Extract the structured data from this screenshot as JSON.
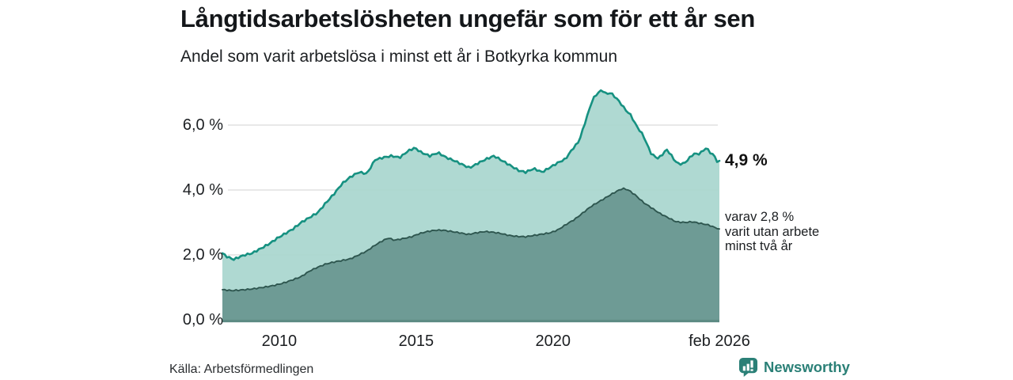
{
  "header": {
    "title": "Långtidsarbetslösheten ungefär som för ett år sen",
    "subtitle": "Andel som varit arbetslösa i minst ett år i Botkyrka kommun"
  },
  "annotations": {
    "latest_total": "4,9 %",
    "sub_lines": [
      "varav 2,8 %",
      "varit utan arbete",
      "minst två år"
    ]
  },
  "footer": {
    "source": "Källa: Arbetsförmedlingen",
    "brand": "Newsworthy"
  },
  "colors": {
    "title_text": "#14171a",
    "light_area_fill": "#a8d6ce",
    "light_area_line": "#169181",
    "dark_area_fill": "#6e9b95",
    "dark_area_line": "#2e564f",
    "gridline": "#d9d9d9",
    "baseline_axis": "#5d8b84",
    "brand_teal": "#2b8077"
  },
  "chart_data": {
    "type": "area",
    "title": "Långtidsarbetslösheten ungefär som för ett år sen",
    "subtitle": "Andel som varit arbetslösa i minst ett år i Botkyrka kommun",
    "unit": "%",
    "grid": true,
    "legend_position": "right-annotations",
    "x_domain": [
      2007.92,
      2026.08
    ],
    "ylim": [
      0,
      7.5
    ],
    "y_ticks": [
      {
        "value": 0,
        "label": "0,0 %"
      },
      {
        "value": 2,
        "label": "2,0 %"
      },
      {
        "value": 4,
        "label": "4,0 %"
      },
      {
        "value": 6,
        "label": "6,0 %"
      }
    ],
    "x_ticks": [
      {
        "value": 2010,
        "label": "2010"
      },
      {
        "value": 2015,
        "label": "2015"
      },
      {
        "value": 2020,
        "label": "2020"
      },
      {
        "value": 2026.08,
        "label": "feb 2026"
      }
    ],
    "series": [
      {
        "name": "Andel arbetslösa minst ett år",
        "latest_value": 4.9,
        "latest_label": "4,9 %",
        "points": [
          [
            2007.92,
            2.05
          ],
          [
            2008.08,
            1.95
          ],
          [
            2008.33,
            1.86
          ],
          [
            2008.58,
            1.95
          ],
          [
            2008.75,
            2.0
          ],
          [
            2009.0,
            2.05
          ],
          [
            2009.33,
            2.2
          ],
          [
            2009.65,
            2.35
          ],
          [
            2009.9,
            2.5
          ],
          [
            2010.2,
            2.65
          ],
          [
            2010.5,
            2.8
          ],
          [
            2010.8,
            3.0
          ],
          [
            2011.1,
            3.15
          ],
          [
            2011.4,
            3.3
          ],
          [
            2011.7,
            3.6
          ],
          [
            2012.0,
            3.88
          ],
          [
            2012.3,
            4.2
          ],
          [
            2012.6,
            4.4
          ],
          [
            2012.9,
            4.55
          ],
          [
            2013.2,
            4.5
          ],
          [
            2013.5,
            4.93
          ],
          [
            2013.8,
            5.0
          ],
          [
            2014.1,
            5.05
          ],
          [
            2014.4,
            5.0
          ],
          [
            2014.7,
            5.2
          ],
          [
            2014.95,
            5.3
          ],
          [
            2015.2,
            5.15
          ],
          [
            2015.5,
            5.05
          ],
          [
            2015.8,
            5.15
          ],
          [
            2016.1,
            5.0
          ],
          [
            2016.4,
            4.9
          ],
          [
            2016.7,
            4.78
          ],
          [
            2016.95,
            4.68
          ],
          [
            2017.25,
            4.82
          ],
          [
            2017.55,
            4.95
          ],
          [
            2017.85,
            5.05
          ],
          [
            2018.15,
            4.9
          ],
          [
            2018.45,
            4.75
          ],
          [
            2018.75,
            4.6
          ],
          [
            2019.0,
            4.55
          ],
          [
            2019.3,
            4.66
          ],
          [
            2019.6,
            4.55
          ],
          [
            2019.9,
            4.7
          ],
          [
            2020.2,
            4.85
          ],
          [
            2020.45,
            4.95
          ],
          [
            2020.7,
            5.25
          ],
          [
            2020.95,
            5.5
          ],
          [
            2021.2,
            6.15
          ],
          [
            2021.45,
            6.8
          ],
          [
            2021.65,
            7.0
          ],
          [
            2021.8,
            7.08
          ],
          [
            2021.95,
            6.95
          ],
          [
            2022.1,
            7.0
          ],
          [
            2022.25,
            6.88
          ],
          [
            2022.4,
            6.75
          ],
          [
            2022.55,
            6.58
          ],
          [
            2022.7,
            6.42
          ],
          [
            2022.85,
            6.3
          ],
          [
            2023.0,
            6.05
          ],
          [
            2023.15,
            5.85
          ],
          [
            2023.3,
            5.68
          ],
          [
            2023.45,
            5.38
          ],
          [
            2023.6,
            5.1
          ],
          [
            2023.85,
            4.97
          ],
          [
            2024.0,
            5.1
          ],
          [
            2024.15,
            5.25
          ],
          [
            2024.3,
            5.1
          ],
          [
            2024.45,
            4.9
          ],
          [
            2024.6,
            4.8
          ],
          [
            2024.8,
            4.82
          ],
          [
            2025.0,
            5.0
          ],
          [
            2025.15,
            5.12
          ],
          [
            2025.3,
            5.1
          ],
          [
            2025.45,
            5.18
          ],
          [
            2025.6,
            5.3
          ],
          [
            2025.75,
            5.15
          ],
          [
            2025.9,
            5.05
          ],
          [
            2026.0,
            4.88
          ],
          [
            2026.08,
            4.9
          ]
        ]
      },
      {
        "name": "varav arbetslösa minst två år",
        "latest_value": 2.8,
        "latest_label": "varav 2,8 % varit utan arbete minst två år",
        "points": [
          [
            2007.92,
            0.93
          ],
          [
            2008.25,
            0.9
          ],
          [
            2008.6,
            0.92
          ],
          [
            2009.0,
            0.95
          ],
          [
            2009.4,
            1.0
          ],
          [
            2009.75,
            1.05
          ],
          [
            2010.1,
            1.12
          ],
          [
            2010.45,
            1.22
          ],
          [
            2010.8,
            1.33
          ],
          [
            2011.1,
            1.5
          ],
          [
            2011.4,
            1.62
          ],
          [
            2011.7,
            1.72
          ],
          [
            2012.0,
            1.78
          ],
          [
            2012.3,
            1.83
          ],
          [
            2012.6,
            1.88
          ],
          [
            2012.9,
            2.0
          ],
          [
            2013.2,
            2.12
          ],
          [
            2013.5,
            2.3
          ],
          [
            2013.8,
            2.45
          ],
          [
            2014.0,
            2.52
          ],
          [
            2014.2,
            2.45
          ],
          [
            2014.5,
            2.5
          ],
          [
            2014.8,
            2.55
          ],
          [
            2015.1,
            2.65
          ],
          [
            2015.4,
            2.72
          ],
          [
            2015.7,
            2.76
          ],
          [
            2016.0,
            2.76
          ],
          [
            2016.3,
            2.72
          ],
          [
            2016.6,
            2.68
          ],
          [
            2016.9,
            2.63
          ],
          [
            2017.2,
            2.68
          ],
          [
            2017.5,
            2.72
          ],
          [
            2017.8,
            2.7
          ],
          [
            2018.1,
            2.66
          ],
          [
            2018.4,
            2.6
          ],
          [
            2018.7,
            2.57
          ],
          [
            2019.0,
            2.56
          ],
          [
            2019.3,
            2.6
          ],
          [
            2019.6,
            2.64
          ],
          [
            2019.9,
            2.68
          ],
          [
            2020.2,
            2.78
          ],
          [
            2020.5,
            2.95
          ],
          [
            2020.8,
            3.1
          ],
          [
            2021.1,
            3.3
          ],
          [
            2021.4,
            3.5
          ],
          [
            2021.7,
            3.65
          ],
          [
            2022.0,
            3.8
          ],
          [
            2022.3,
            3.95
          ],
          [
            2022.55,
            4.05
          ],
          [
            2022.75,
            4.0
          ],
          [
            2023.0,
            3.85
          ],
          [
            2023.3,
            3.62
          ],
          [
            2023.6,
            3.45
          ],
          [
            2023.9,
            3.28
          ],
          [
            2024.2,
            3.15
          ],
          [
            2024.5,
            3.02
          ],
          [
            2024.8,
            3.0
          ],
          [
            2025.1,
            3.02
          ],
          [
            2025.4,
            2.97
          ],
          [
            2025.7,
            2.92
          ],
          [
            2025.9,
            2.85
          ],
          [
            2026.08,
            2.8
          ]
        ]
      }
    ]
  }
}
